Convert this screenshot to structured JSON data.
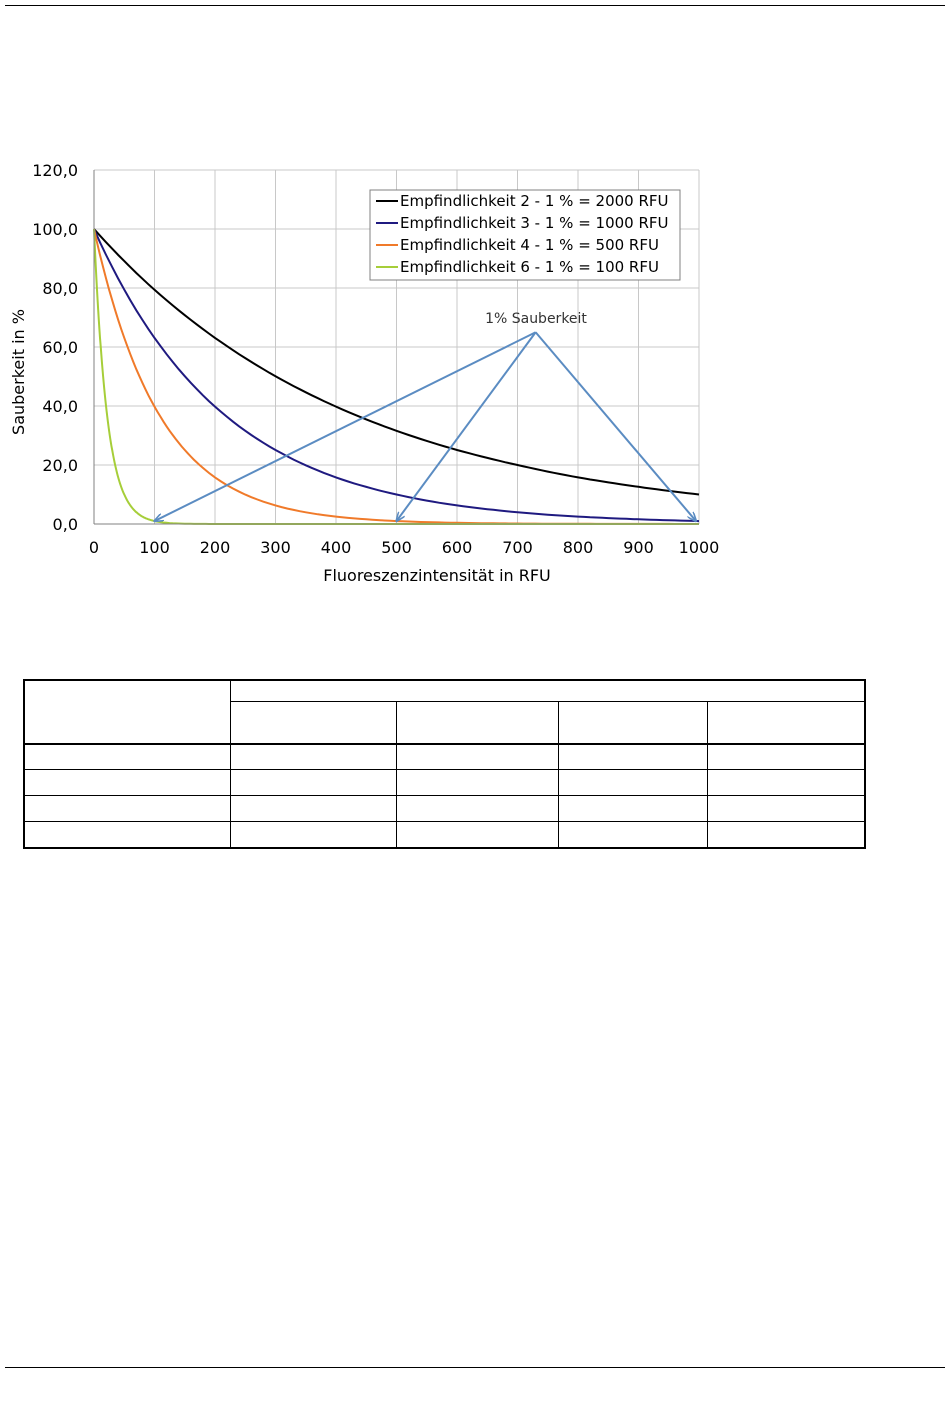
{
  "chart_data": {
    "type": "line",
    "title": "",
    "xlabel": "Fluoreszenzintensität in RFU",
    "ylabel": "Sauberkeit in %",
    "xlim": [
      0,
      1000
    ],
    "ylim": [
      0,
      120
    ],
    "x_ticks": [
      "0",
      "100",
      "200",
      "300",
      "400",
      "500",
      "600",
      "700",
      "800",
      "900",
      "1000"
    ],
    "y_ticks": [
      "0,0",
      "20,0",
      "40,0",
      "60,0",
      "80,0",
      "100,0",
      "120,0"
    ],
    "grid": true,
    "legend_position": "top-right",
    "series": [
      {
        "name": "Empfindlichkeit 2 - 1 % = 2000 RFU",
        "color": "#000000",
        "x": [
          0,
          100,
          200,
          300,
          400,
          500,
          600,
          700,
          800,
          900,
          1000
        ],
        "y": [
          100,
          79.4,
          63.1,
          50.1,
          39.8,
          31.6,
          25.1,
          20.0,
          15.8,
          12.6,
          10.0
        ]
      },
      {
        "name": "Empfindlichkeit 3 - 1 % = 1000 RFU",
        "color": "#1f1a80",
        "x": [
          0,
          100,
          200,
          300,
          400,
          500,
          600,
          700,
          800,
          900,
          1000
        ],
        "y": [
          100,
          63.1,
          39.8,
          25.1,
          15.8,
          10.0,
          6.3,
          4.0,
          2.5,
          1.6,
          1.0
        ]
      },
      {
        "name": "Empfindlichkeit 4 - 1 % = 500 RFU",
        "color": "#f07a2a",
        "x": [
          0,
          50,
          100,
          150,
          200,
          300,
          400,
          500,
          600,
          700,
          800,
          900,
          1000
        ],
        "y": [
          100,
          63.1,
          39.8,
          25.1,
          15.8,
          6.3,
          2.5,
          1.0,
          0.4,
          0.16,
          0.06,
          0.03,
          0.01
        ]
      },
      {
        "name": "Empfindlichkeit 6 - 1 % = 100 RFU",
        "color": "#a6ce39",
        "x": [
          0,
          10,
          20,
          30,
          40,
          50,
          60,
          70,
          80,
          90,
          100,
          150,
          200,
          1000
        ],
        "y": [
          100,
          63.1,
          39.8,
          25.1,
          15.8,
          10.0,
          6.3,
          4.0,
          2.5,
          1.6,
          1.0,
          0.1,
          0.01,
          0
        ]
      }
    ],
    "annotations": [
      {
        "text": "1% Sauberkeit",
        "color": "#5b8cc2",
        "apex": {
          "x": 730,
          "y": 65
        },
        "targets": [
          {
            "x": 100,
            "y": 1
          },
          {
            "x": 500,
            "y": 1
          },
          {
            "x": 1000,
            "y": 1
          }
        ]
      }
    ]
  }
}
